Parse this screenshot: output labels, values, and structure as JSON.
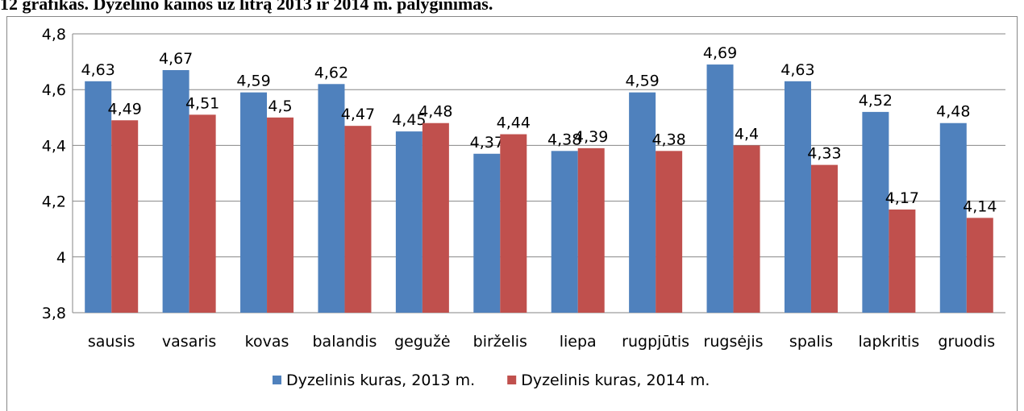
{
  "chart_data": {
    "type": "bar",
    "title": "12 grafikas. Dyzelino kainos už litrą 2013 ir 2014 m. palyginimas.",
    "categories": [
      "sausis",
      "vasaris",
      "kovas",
      "balandis",
      "gegužė",
      "birželis",
      "liepa",
      "rugpjūtis",
      "rugsėjis",
      "spalis",
      "lapkritis",
      "gruodis"
    ],
    "series": [
      {
        "name": "Dyzelinis kuras, 2013 m.",
        "color": "#4f81bd",
        "values": [
          4.63,
          4.67,
          4.59,
          4.62,
          4.45,
          4.37,
          4.38,
          4.59,
          4.69,
          4.63,
          4.52,
          4.48
        ],
        "value_labels": [
          "4,63",
          "4,67",
          "4,59",
          "4,62",
          "4,45",
          "4,37",
          "4,38",
          "4,59",
          "4,69",
          "4,63",
          "4,52",
          "4,48"
        ]
      },
      {
        "name": "Dyzelinis kuras, 2014 m.",
        "color": "#c0504d",
        "values": [
          4.49,
          4.51,
          4.5,
          4.47,
          4.48,
          4.44,
          4.39,
          4.38,
          4.4,
          4.33,
          4.17,
          4.14
        ],
        "value_labels": [
          "4,49",
          "4,51",
          "4,5",
          "4,47",
          "4,48",
          "4,44",
          "4,39",
          "4,38",
          "4,4",
          "4,33",
          "4,17",
          "4,14"
        ]
      }
    ],
    "ylim": [
      3.8,
      4.8
    ],
    "yticks": [
      {
        "value": 3.8,
        "label": "3,8"
      },
      4,
      {
        "value": 4.2,
        "label": "4,2"
      },
      {
        "value": 4.4,
        "label": "4,4"
      },
      {
        "value": 4.6,
        "label": "4,6"
      },
      {
        "value": 4.8,
        "label": "4,8"
      }
    ],
    "grid": true,
    "legend": "bottom"
  }
}
